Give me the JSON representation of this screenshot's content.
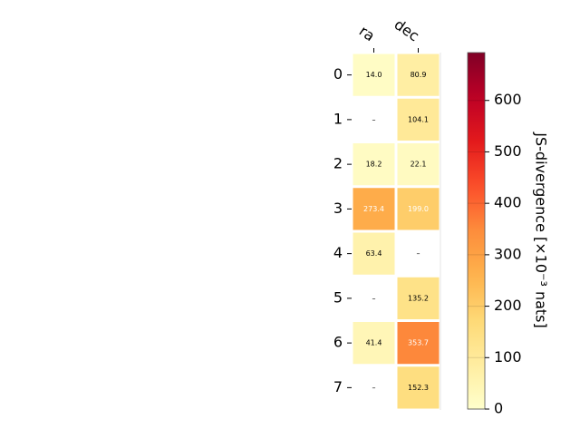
{
  "chart_data": {
    "type": "heatmap",
    "columns": [
      "ra",
      "dec"
    ],
    "rows": [
      "0",
      "1",
      "2",
      "3",
      "4",
      "5",
      "6",
      "7"
    ],
    "values": [
      [
        14.0,
        80.9
      ],
      [
        null,
        104.1
      ],
      [
        18.2,
        22.1
      ],
      [
        273.4,
        199.0
      ],
      [
        63.4,
        null
      ],
      [
        null,
        135.2
      ],
      [
        41.4,
        353.7
      ],
      [
        null,
        152.3
      ]
    ],
    "labels": [
      [
        "14.0",
        "80.9"
      ],
      [
        "–",
        "104.1"
      ],
      [
        "18.2",
        "22.1"
      ],
      [
        "273.4",
        "199.0"
      ],
      [
        "63.4",
        "–"
      ],
      [
        "–",
        "135.2"
      ],
      [
        "41.4",
        "353.7"
      ],
      [
        "–",
        "152.3"
      ]
    ],
    "colorbar": {
      "label": "JS-divergence [×10⁻³ nats]",
      "range": [
        0,
        693
      ],
      "ticks": [
        "0",
        "100",
        "200",
        "300",
        "400",
        "500",
        "600"
      ],
      "tick_values": [
        0,
        100,
        200,
        300,
        400,
        500,
        600
      ],
      "colormap": "YlOrRd"
    },
    "colors": {
      "light_text_threshold": 180
    }
  }
}
